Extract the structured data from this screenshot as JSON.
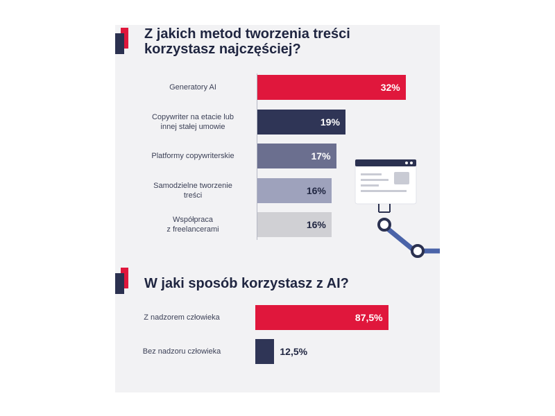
{
  "chart_data": [
    {
      "type": "bar",
      "orientation": "horizontal",
      "title": "Z jakich metod tworzenia treści korzystasz najczęściej?",
      "title_lines": [
        "Z jakich metod tworzenia treści",
        "korzystasz najczęściej?"
      ],
      "categories": [
        "Generatory AI",
        "Copywriter na etacie lub innej stałej umowie",
        "Platformy copywriterskie",
        "Samodzielne tworzenie treści",
        "Współpraca z freelancerami"
      ],
      "category_lines": [
        [
          "Generatory AI"
        ],
        [
          "Copywriter na etacie lub",
          "innej stałej umowie"
        ],
        [
          "Platformy copywriterskie"
        ],
        [
          "Samodzielne tworzenie",
          "treści"
        ],
        [
          "Współpraca",
          "z freelancerami"
        ]
      ],
      "values": [
        32,
        19,
        17,
        16,
        16
      ],
      "value_labels": [
        "32%",
        "19%",
        "17%",
        "16%",
        "16%"
      ],
      "colors": [
        "#e0173c",
        "#2f3556",
        "#6b6f8f",
        "#9ea2bc",
        "#d0d0d4"
      ],
      "label_colors": [
        "#ffffff",
        "#ffffff",
        "#ffffff",
        "#1f2540",
        "#1f2540"
      ],
      "unit": "%",
      "xlim": [
        0,
        100
      ],
      "grid": false,
      "legend": "none"
    },
    {
      "type": "bar",
      "orientation": "horizontal",
      "title": "W jaki sposób korzystasz z AI?",
      "title_lines": [
        "W jaki sposób korzystasz z AI?"
      ],
      "categories": [
        "Z nadzorem człowieka",
        "Bez nadzoru człowieka"
      ],
      "category_lines": [
        [
          "Z nadzorem człowieka"
        ],
        [
          "Bez nadzoru człowieka"
        ]
      ],
      "values": [
        87.5,
        12.5
      ],
      "value_labels": [
        "87,5%",
        "12,5%"
      ],
      "colors": [
        "#e0173c",
        "#2f3556"
      ],
      "label_colors": [
        "#ffffff",
        "#1f2540"
      ],
      "label_position": [
        "inside",
        "outside"
      ],
      "unit": "%",
      "xlim": [
        0,
        100
      ],
      "grid": false,
      "legend": "none"
    }
  ],
  "decoration": {
    "illustration": "browser-window-with-connector-icon",
    "colors": {
      "accent_red": "#e0173c",
      "navy": "#2b3150",
      "connector_blue": "#4a63a8"
    }
  }
}
